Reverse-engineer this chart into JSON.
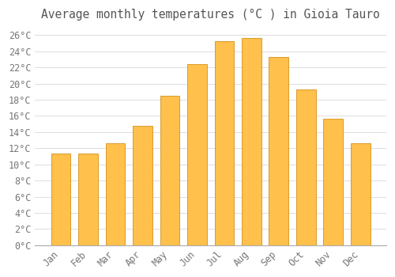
{
  "title": "Average monthly temperatures (°C ) in Gioia Tauro",
  "months": [
    "Jan",
    "Feb",
    "Mar",
    "Apr",
    "May",
    "Jun",
    "Jul",
    "Aug",
    "Sep",
    "Oct",
    "Nov",
    "Dec"
  ],
  "values": [
    11.3,
    11.3,
    12.6,
    14.8,
    18.5,
    22.4,
    25.3,
    25.7,
    23.3,
    19.3,
    15.7,
    12.6
  ],
  "bar_color_top": "#FFC04C",
  "bar_color_bottom": "#F5A623",
  "bar_edge_color": "#D4911A",
  "background_color": "#ffffff",
  "grid_color": "#dddddd",
  "ylim": [
    0,
    27
  ],
  "ytick_step": 2,
  "title_fontsize": 10.5,
  "tick_fontsize": 8.5,
  "tick_color": "#777777",
  "title_color": "#555555",
  "bar_width": 0.72
}
